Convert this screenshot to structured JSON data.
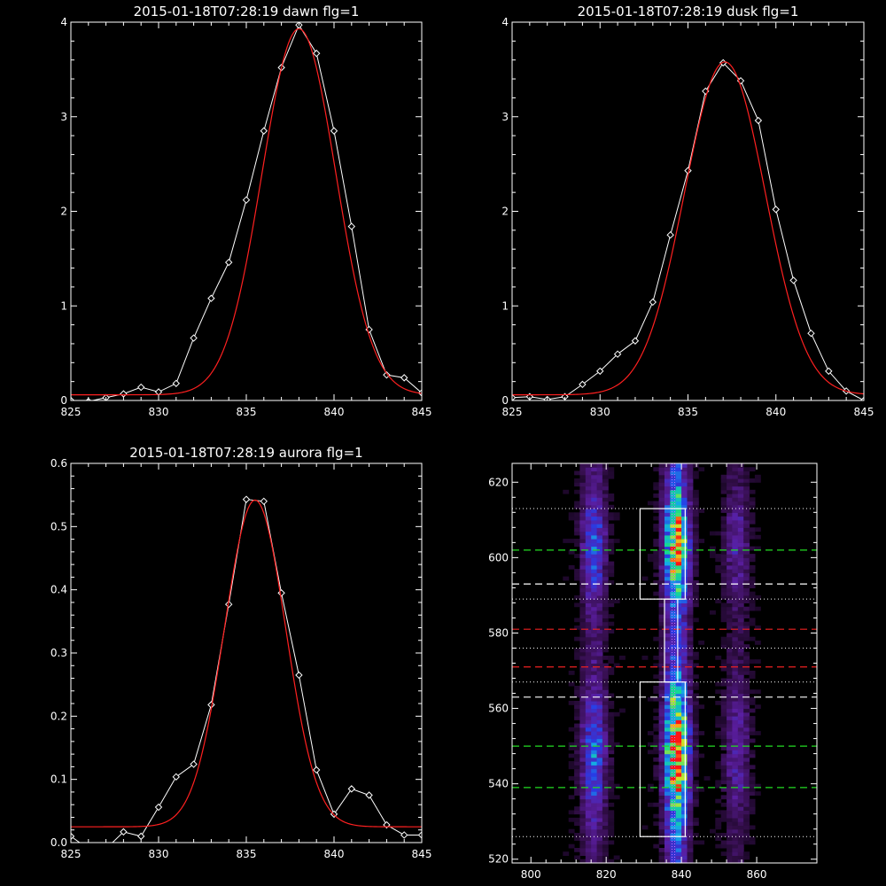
{
  "chart_data": [
    {
      "type": "line",
      "title": "2015-01-18T07:28:19 dawn flg=1",
      "xlim": [
        825,
        845
      ],
      "ylim": [
        0,
        4
      ],
      "xticks": [
        "825",
        "830",
        "835",
        "840",
        "845"
      ],
      "yticks": [
        "0",
        "1",
        "2",
        "3",
        "4"
      ],
      "series": [
        {
          "color": "#ffffff",
          "marker": "diamond",
          "x": [
            825,
            826,
            827,
            828,
            829,
            830,
            831,
            832,
            833,
            834,
            835,
            836,
            837,
            838,
            839,
            840,
            841,
            842,
            843,
            844,
            845
          ],
          "values": [
            0.0,
            -0.01,
            0.03,
            0.07,
            0.14,
            0.09,
            0.18,
            0.66,
            1.08,
            1.46,
            2.12,
            2.85,
            3.52,
            3.97,
            3.67,
            2.85,
            1.84,
            0.75,
            0.27,
            0.24,
            0.08
          ]
        },
        {
          "color": "#ff2020",
          "curve": "gaussian",
          "x": [
            825,
            845
          ],
          "amplitude": 3.87,
          "center": 838.0,
          "sigma": 2.1,
          "offset": 0.06
        }
      ]
    },
    {
      "type": "line",
      "title": "2015-01-18T07:28:19 dusk flg=1",
      "xlim": [
        825,
        845
      ],
      "ylim": [
        0,
        4
      ],
      "xticks": [
        "825",
        "830",
        "835",
        "840",
        "845"
      ],
      "yticks": [
        "0",
        "1",
        "2",
        "3",
        "4"
      ],
      "series": [
        {
          "color": "#ffffff",
          "marker": "diamond",
          "x": [
            825,
            826,
            827,
            828,
            829,
            830,
            831,
            832,
            833,
            834,
            835,
            836,
            837,
            838,
            839,
            840,
            841,
            842,
            843,
            844,
            845
          ],
          "values": [
            0.03,
            0.04,
            0.01,
            0.04,
            0.17,
            0.31,
            0.49,
            0.63,
            1.04,
            1.75,
            2.43,
            3.27,
            3.57,
            3.38,
            2.96,
            2.02,
            1.27,
            0.71,
            0.31,
            0.1,
            0.0
          ]
        },
        {
          "color": "#ff2020",
          "curve": "gaussian",
          "x": [
            825,
            845
          ],
          "amplitude": 3.52,
          "center": 837.1,
          "sigma": 2.3,
          "offset": 0.06
        }
      ]
    },
    {
      "type": "line",
      "title": "2015-01-18T07:28:19 aurora flg=1",
      "xlim": [
        825,
        845
      ],
      "ylim": [
        0,
        0.6
      ],
      "xticks": [
        "825",
        "830",
        "835",
        "840",
        "845"
      ],
      "yticks": [
        "0.0",
        "0.1",
        "0.2",
        "0.3",
        "0.4",
        "0.5",
        "0.6"
      ],
      "series": [
        {
          "color": "#ffffff",
          "marker": "diamond",
          "x": [
            825,
            826,
            827,
            828,
            829,
            830,
            831,
            832,
            833,
            834,
            835,
            836,
            837,
            838,
            839,
            840,
            841,
            842,
            843,
            844,
            845
          ],
          "values": [
            0.01,
            -0.01,
            -0.01,
            0.017,
            0.01,
            0.056,
            0.104,
            0.124,
            0.218,
            0.377,
            0.543,
            0.54,
            0.395,
            0.265,
            0.115,
            0.045,
            0.085,
            0.075,
            0.028,
            0.012,
            0.012
          ]
        },
        {
          "color": "#ff2020",
          "curve": "gaussian",
          "x": [
            825,
            845
          ],
          "amplitude": 0.517,
          "center": 835.5,
          "sigma": 1.75,
          "offset": 0.025
        }
      ]
    },
    {
      "type": "heatmap",
      "title": "",
      "xlim": [
        795,
        876
      ],
      "ylim": [
        519,
        625
      ],
      "xticks": [
        "800",
        "820",
        "840",
        "860"
      ],
      "yticks": [
        "520",
        "540",
        "560",
        "580",
        "600",
        "620"
      ],
      "colormap": "rainbow",
      "columns": [
        {
          "center": 816,
          "intensity": 0.45
        },
        {
          "center": 838,
          "intensity": 1.0
        },
        {
          "center": 854,
          "intensity": 0.28
        }
      ],
      "boxes": [
        {
          "x": [
            829,
            841
          ],
          "y": [
            589,
            613
          ]
        },
        {
          "x": [
            829,
            841
          ],
          "y": [
            526,
            567
          ]
        },
        {
          "x": [
            835.5,
            839
          ],
          "y": [
            567,
            589
          ]
        }
      ],
      "vertical_line": {
        "x": 837.5,
        "color": "#c070ff"
      },
      "dotted_lines": [
        613,
        589,
        576,
        567,
        526
      ],
      "dashed_lines": [
        {
          "y": 602,
          "color": "#22dd22"
        },
        {
          "y": 593,
          "color": "#ffffff"
        },
        {
          "y": 581,
          "color": "#ee2020"
        },
        {
          "y": 571,
          "color": "#ee2020"
        },
        {
          "y": 563,
          "color": "#ffffff"
        },
        {
          "y": 550,
          "color": "#22dd22"
        },
        {
          "y": 539,
          "color": "#22dd22"
        }
      ]
    }
  ]
}
